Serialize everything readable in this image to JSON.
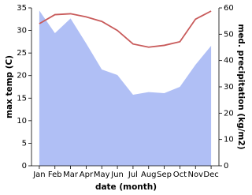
{
  "chart_data": {
    "type": "line",
    "x_label": "date (month)",
    "y_label": "max temp (C)",
    "y2_label": "med. precipitation (kg/m2)",
    "categories": [
      "Jan",
      "Feb",
      "Mar",
      "Apr",
      "May",
      "Jun",
      "Jul",
      "Aug",
      "Sep",
      "Oct",
      "Nov",
      "Dec"
    ],
    "ylim": [
      0,
      35
    ],
    "yticks": [
      0,
      5,
      10,
      15,
      20,
      25,
      30,
      35
    ],
    "y2lim": [
      0,
      60
    ],
    "y2ticks": [
      0,
      10,
      20,
      30,
      40,
      50,
      60
    ],
    "series": [
      {
        "type": "line",
        "color": "#c85a5a",
        "values": [
          31.5,
          33.5,
          33.7,
          33,
          32,
          30,
          27,
          26.3,
          26.7,
          27.5,
          32.5,
          34.3
        ]
      },
      {
        "type": "area",
        "axis": "y2",
        "color": "#b0bff5",
        "values": [
          59,
          50.4,
          56,
          46.5,
          36.6,
          34.5,
          27,
          28,
          27.6,
          30,
          38.4,
          45.6
        ]
      }
    ]
  }
}
